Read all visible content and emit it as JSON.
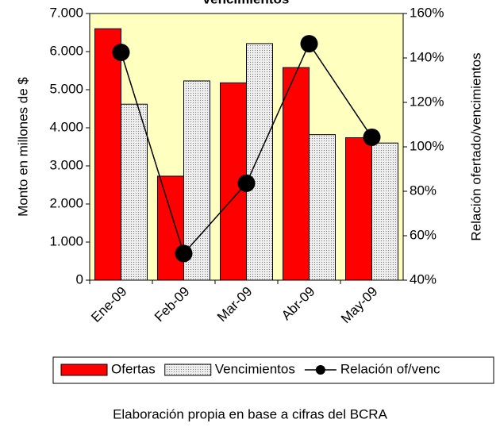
{
  "chart_data": {
    "type": "bar",
    "title": "vencimientos",
    "y_label": "Monto en millones de $",
    "y2_label": "Relación ofertado/vencimientos",
    "footer": "Elaboración propia en base a cifras del BCRA",
    "categories": [
      "Ene-09",
      "Feb-09",
      "Mar-09",
      "Abr-09",
      "May-09"
    ],
    "series": [
      {
        "name": "Ofertas",
        "color": "#ff0000",
        "type": "bar",
        "values": [
          6600,
          2730,
          5180,
          5580,
          3740
        ]
      },
      {
        "name": "Vencimientos",
        "color": "#d9d9d9",
        "type": "bar",
        "values": [
          4620,
          5230,
          6210,
          3820,
          3600
        ]
      },
      {
        "name": "Relación of/venc",
        "color": "#000000",
        "type": "line",
        "axis": "y2",
        "values": [
          142.5,
          52,
          83.6,
          146.4,
          104.3
        ]
      }
    ],
    "ylim": [
      0,
      7000
    ],
    "yticks": [
      {
        "value": 0,
        "label": "0"
      },
      {
        "value": 1000,
        "label": "1.000"
      },
      {
        "value": 2000,
        "label": "2.000"
      },
      {
        "value": 3000,
        "label": "3.000"
      },
      {
        "value": 4000,
        "label": "4.000"
      },
      {
        "value": 5000,
        "label": "5.000"
      },
      {
        "value": 6000,
        "label": "6.000"
      },
      {
        "value": 7000,
        "label": "7.000"
      }
    ],
    "y2lim": [
      40,
      160
    ],
    "y2ticks": [
      {
        "value": 40,
        "label": "40%"
      },
      {
        "value": 60,
        "label": "60%"
      },
      {
        "value": 80,
        "label": "80%"
      },
      {
        "value": 100,
        "label": "100%"
      },
      {
        "value": 120,
        "label": "120%"
      },
      {
        "value": 140,
        "label": "140%"
      },
      {
        "value": 160,
        "label": "160%"
      }
    ],
    "legend": "bottom"
  }
}
